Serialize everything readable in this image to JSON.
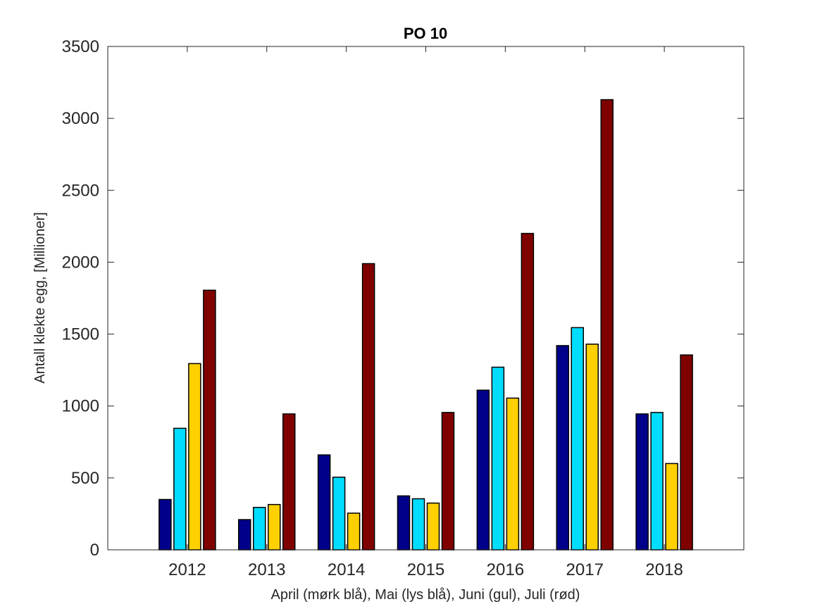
{
  "chart_data": {
    "type": "bar",
    "title": "PO 10",
    "xlabel": "April (mørk blå), Mai (lys blå), Juni (gul), Juli (rød)",
    "ylabel": "Antall klekte egg, [Millioner]",
    "categories": [
      "2012",
      "2013",
      "2014",
      "2015",
      "2016",
      "2017",
      "2018"
    ],
    "xlim": [
      2011,
      2019
    ],
    "ylim": [
      0,
      3500
    ],
    "yticks": [
      0,
      500,
      1000,
      1500,
      2000,
      2500,
      3000,
      3500
    ],
    "grid": false,
    "series": [
      {
        "name": "April",
        "color": "#00008B",
        "values": [
          350,
          210,
          660,
          375,
          1110,
          1420,
          945
        ]
      },
      {
        "name": "Mai",
        "color": "#00DDFF",
        "values": [
          845,
          295,
          505,
          355,
          1270,
          1545,
          955
        ]
      },
      {
        "name": "Juni",
        "color": "#FFD000",
        "values": [
          1295,
          315,
          255,
          325,
          1055,
          1430,
          600
        ]
      },
      {
        "name": "Juli",
        "color": "#800000",
        "values": [
          1805,
          945,
          1990,
          955,
          2200,
          3130,
          1355
        ]
      }
    ]
  }
}
